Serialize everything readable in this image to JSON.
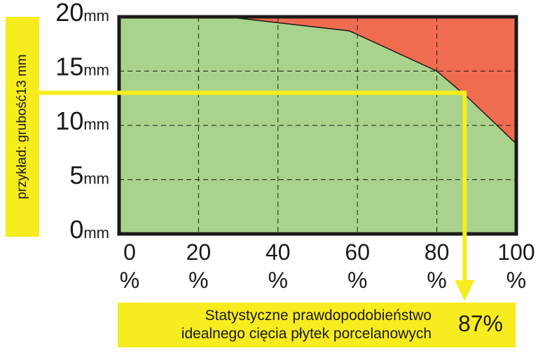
{
  "chart_data": {
    "type": "area",
    "y_ticks": [
      {
        "value": 20,
        "num": "20",
        "unit": "mm"
      },
      {
        "value": 15,
        "num": "15",
        "unit": "mm"
      },
      {
        "value": 10,
        "num": "10",
        "unit": "mm"
      },
      {
        "value": 5,
        "num": "5",
        "unit": "mm"
      },
      {
        "value": 0,
        "num": "0",
        "unit": "mm"
      }
    ],
    "x_ticks": [
      {
        "value": 0,
        "num": "0",
        "unit": "%"
      },
      {
        "value": 20,
        "num": "20",
        "unit": "%"
      },
      {
        "value": 40,
        "num": "40",
        "unit": "%"
      },
      {
        "value": 60,
        "num": "60",
        "unit": "%"
      },
      {
        "value": 80,
        "num": "80",
        "unit": "%"
      },
      {
        "value": 100,
        "num": "100",
        "unit": "%"
      }
    ],
    "xlim": [
      0,
      100
    ],
    "ylim": [
      0,
      20
    ],
    "grid": true,
    "boundary": {
      "x": [
        0,
        27,
        58,
        80,
        88,
        100
      ],
      "y": [
        20,
        20,
        18.7,
        15,
        12.5,
        8.3
      ]
    },
    "example": {
      "thickness": 13,
      "probability": 87
    },
    "colors": {
      "success_area": "#a9d38c",
      "failure_area": "#ef6c50",
      "highlight": "#f7ec1e",
      "frame": "#1a1a1a"
    }
  },
  "example_label": "przykład: grubość13 mm",
  "result": {
    "line1": "Statystyczne prawdopodobieństwo",
    "line2": "idealnego cięcia płytek porcelanowych",
    "value": "87%"
  }
}
